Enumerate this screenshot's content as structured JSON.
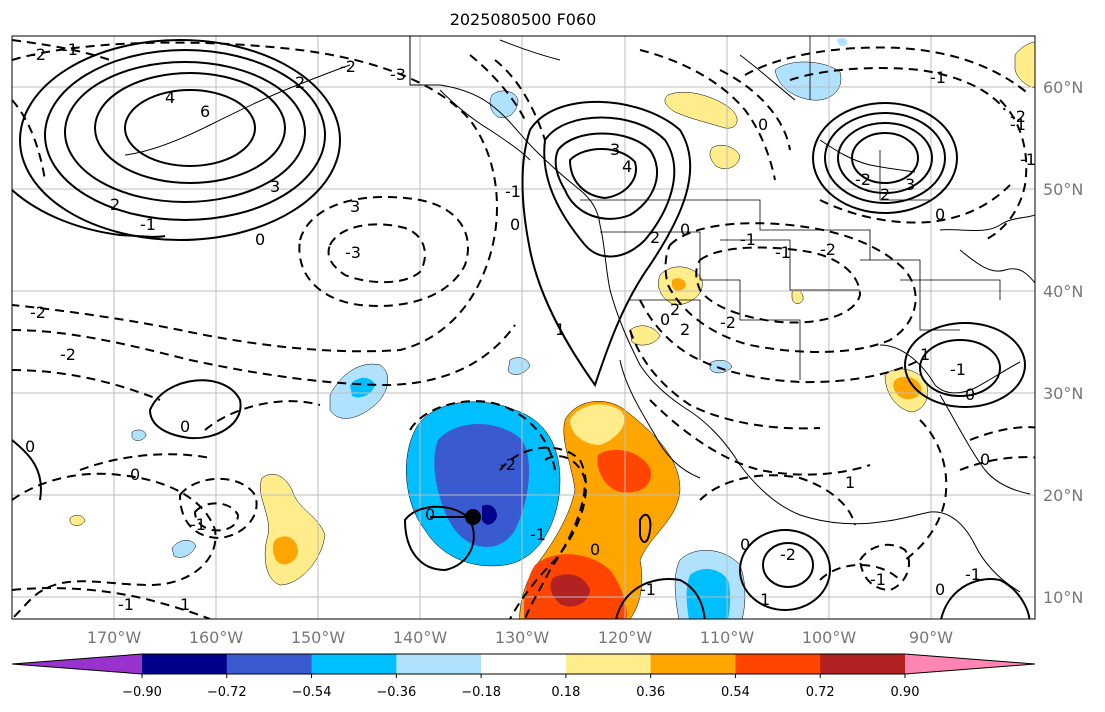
{
  "title": "2025080500 F060",
  "map": {
    "lat_labels": [
      "60°N",
      "50°N",
      "40°N",
      "30°N",
      "20°N",
      "10°N"
    ],
    "lon_labels": [
      "170°W",
      "160°W",
      "150°W",
      "140°W",
      "130°W",
      "120°W",
      "110°W",
      "100°W",
      "90°W"
    ],
    "contour_labels": [
      "-2",
      "-1",
      "-3",
      "-2",
      "2",
      "4",
      "6",
      "3",
      "2",
      "-1",
      "0",
      "3",
      "-3",
      "3",
      "4",
      "2",
      "-1",
      "1",
      "0",
      "-2",
      "0",
      "-2",
      "-1",
      "-1",
      "2",
      "3",
      "0",
      "-2",
      "-2",
      "0",
      "0",
      "-1",
      "0",
      "0",
      "0",
      "1",
      "-1",
      "-1",
      "0",
      "-2",
      "0",
      "-1",
      "-1",
      "-2",
      "1",
      "2",
      "0",
      "-1",
      "1",
      "0",
      "0",
      "0",
      "-1",
      "-1",
      "-1",
      "-2",
      "-1",
      "2",
      "1",
      "-2"
    ]
  },
  "colorbar": {
    "ticks": [
      "−0.90",
      "−0.72",
      "−0.54",
      "−0.36",
      "−0.18",
      "0.18",
      "0.36",
      "0.54",
      "0.72",
      "0.90"
    ],
    "colors": [
      "#9932cc",
      "#00008b",
      "#3a5bd0",
      "#00bfff",
      "#b0e2ff",
      "#ffffff",
      "#ffec8b",
      "#ffa500",
      "#ff4500",
      "#b22222",
      "#ff85b3"
    ]
  }
}
